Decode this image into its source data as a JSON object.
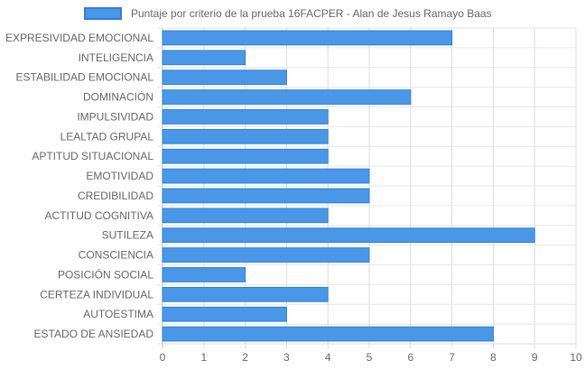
{
  "chart_data": {
    "type": "bar",
    "orientation": "horizontal",
    "title": "",
    "xlabel": "",
    "ylabel": "",
    "categories": [
      "EXPRESIVIDAD EMOCIONAL",
      "INTELIGENCIA",
      "ESTABILIDAD EMOCIONAL",
      "DOMINACIÓN",
      "IMPULSIVIDAD",
      "LEALTAD GRUPAL",
      "APTITUD SITUACIONAL",
      "EMOTIVIDAD",
      "CREDIBILIDAD",
      "ACTITUD COGNITIVA",
      "SUTILEZA",
      "CONSCIENCIA",
      "POSICIÓN SOCIAL",
      "CERTEZA INDIVIDUAL",
      "AUTOESTIMA",
      "ESTADO DE ANSIEDAD"
    ],
    "series": [
      {
        "name": "Puntaje por criterio de la prueba 16FACPER - Alan de Jesus Ramayo Baas",
        "values": [
          7,
          2,
          3,
          6,
          4,
          4,
          4,
          5,
          5,
          4,
          9,
          5,
          2,
          4,
          3,
          8
        ],
        "color": "#4a97e8",
        "border_color": "#2f7fd8"
      }
    ],
    "x_ticks": [
      "0",
      "1",
      "2",
      "3",
      "4",
      "5",
      "6",
      "7",
      "8",
      "9",
      "10"
    ],
    "xlim": [
      0,
      10
    ],
    "grid": true,
    "legend": "top"
  }
}
